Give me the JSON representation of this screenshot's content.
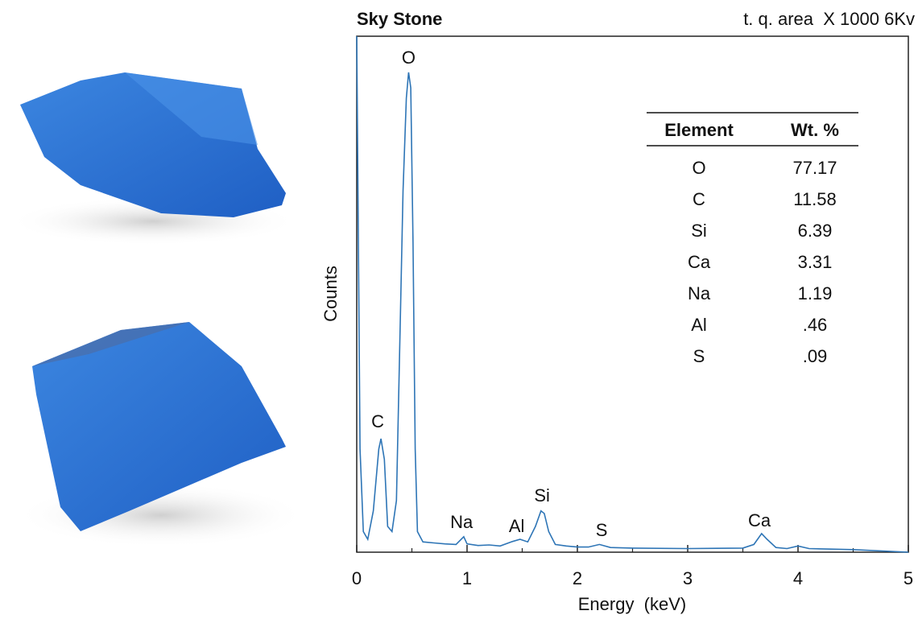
{
  "chart_data": {
    "type": "line",
    "title": "Sky Stone",
    "subtitle": "t. q. area  X 1000 6Kv",
    "x_label": "Energy  (keV)",
    "y_label": "Counts",
    "x": [
      0,
      0.03,
      0.06,
      0.1,
      0.15,
      0.2,
      0.22,
      0.25,
      0.28,
      0.32,
      0.36,
      0.4,
      0.42,
      0.45,
      0.47,
      0.49,
      0.51,
      0.53,
      0.55,
      0.6,
      0.7,
      0.8,
      0.9,
      0.97,
      1.0,
      1.1,
      1.2,
      1.3,
      1.4,
      1.48,
      1.55,
      1.62,
      1.67,
      1.7,
      1.74,
      1.8,
      1.9,
      2.0,
      2.1,
      2.2,
      2.3,
      2.5,
      3.0,
      3.5,
      3.6,
      3.67,
      3.72,
      3.8,
      3.9,
      4.0,
      4.1,
      4.5,
      5.0
    ],
    "series": [
      {
        "name": "Counts",
        "color": "#2e75b6",
        "values": [
          100,
          20,
          4,
          2.5,
          8,
          20,
          22,
          18,
          5,
          4,
          10,
          50,
          70,
          88,
          93,
          90,
          60,
          20,
          4,
          2,
          1.8,
          1.6,
          1.5,
          3,
          1.6,
          1.3,
          1.4,
          1.2,
          2,
          2.5,
          2,
          5,
          8,
          7.5,
          4,
          1.5,
          1.2,
          1,
          1,
          1.5,
          0.9,
          0.8,
          0.7,
          0.8,
          1.5,
          3.6,
          2.5,
          0.9,
          0.7,
          1.2,
          0.7,
          0.5,
          0
        ]
      }
    ],
    "xlim": [
      0,
      5
    ],
    "xticks": [
      0,
      1,
      2,
      3,
      4,
      5
    ],
    "xminorticks": [
      0.5,
      1.5,
      2.5,
      3.5,
      4.5
    ],
    "ylim": [
      0,
      100
    ],
    "annotations": [
      "O",
      "C",
      "Na",
      "Al",
      "Si",
      "S",
      "Ca"
    ],
    "table": {
      "columns": [
        "Element",
        "Wt. %"
      ],
      "rows": [
        [
          "O",
          "77.17"
        ],
        [
          "C",
          "11.58"
        ],
        [
          "Si",
          "6.39"
        ],
        [
          "Ca",
          "3.31"
        ],
        [
          "Na",
          "1.19"
        ],
        [
          "Al",
          ".46"
        ],
        [
          "S",
          ".09"
        ]
      ]
    }
  }
}
